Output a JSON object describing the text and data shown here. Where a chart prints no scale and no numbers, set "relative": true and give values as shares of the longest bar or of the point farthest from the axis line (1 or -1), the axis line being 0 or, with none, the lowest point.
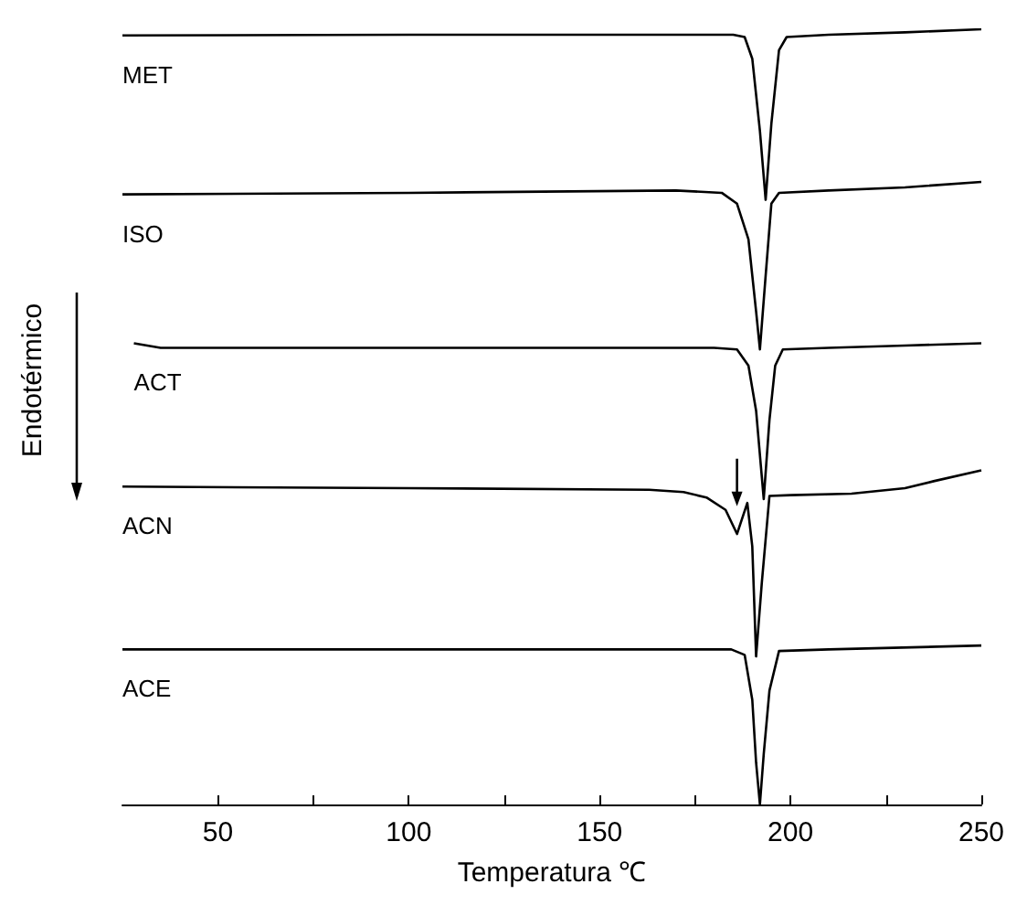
{
  "chart_data": {
    "type": "line",
    "relative": true,
    "xlabel": "Temperatura ℃",
    "ylabel": "Endotérmico",
    "xlim": [
      25,
      250
    ],
    "xticks": [
      50,
      {
        "value": 75,
        "label": null
      },
      100,
      {
        "value": 125,
        "label": null
      },
      150,
      {
        "value": 175,
        "label": null
      },
      200,
      {
        "value": 225,
        "label": null
      },
      250
    ],
    "grid": false,
    "legend": false,
    "marker": "none",
    "line_style": "solid",
    "series": [
      {
        "name": "MET",
        "color": "#000000",
        "x": [
          25,
          100,
          150,
          185,
          188,
          190,
          192,
          193.5,
          195,
          197,
          199,
          210,
          230,
          250
        ],
        "values": [
          0.992,
          0.993,
          0.993,
          0.993,
          0.99,
          0.962,
          0.869,
          0.78,
          0.878,
          0.973,
          0.99,
          0.993,
          0.996,
          1.0
        ]
      },
      {
        "name": "ISO",
        "color": "#000000",
        "x": [
          25,
          100,
          170,
          182,
          186,
          189,
          191,
          192,
          193.5,
          195,
          197,
          210,
          230,
          250
        ],
        "values": [
          0.787,
          0.789,
          0.792,
          0.789,
          0.775,
          0.729,
          0.636,
          0.587,
          0.682,
          0.775,
          0.789,
          0.792,
          0.796,
          0.803
        ]
      },
      {
        "name": "ACT",
        "color": "#000000",
        "x": [
          28,
          35,
          100,
          180,
          186,
          189,
          191,
          193,
          194.5,
          196,
          198,
          210,
          230,
          250
        ],
        "values": [
          0.595,
          0.589,
          0.589,
          0.589,
          0.587,
          0.566,
          0.508,
          0.394,
          0.496,
          0.566,
          0.587,
          0.589,
          0.592,
          0.595
        ]
      },
      {
        "name": "ACN",
        "color": "#000000",
        "x": [
          25,
          100,
          163,
          172,
          178,
          183,
          186,
          188.7,
          190,
          191,
          192.5,
          194.5,
          200,
          216,
          230,
          237.5,
          250
        ],
        "values": [
          0.41,
          0.408,
          0.406,
          0.403,
          0.396,
          0.38,
          0.349,
          0.389,
          0.333,
          0.191,
          0.286,
          0.398,
          0.399,
          0.401,
          0.408,
          0.417,
          0.431
        ]
      },
      {
        "name": "ACE",
        "color": "#000000",
        "x": [
          25,
          100,
          184.5,
          188,
          190,
          191,
          192,
          193,
          194.5,
          197,
          210,
          250
        ],
        "values": [
          0.2,
          0.2,
          0.2,
          0.193,
          0.135,
          0.054,
          0.0,
          0.065,
          0.147,
          0.198,
          0.2,
          0.205
        ]
      }
    ]
  }
}
